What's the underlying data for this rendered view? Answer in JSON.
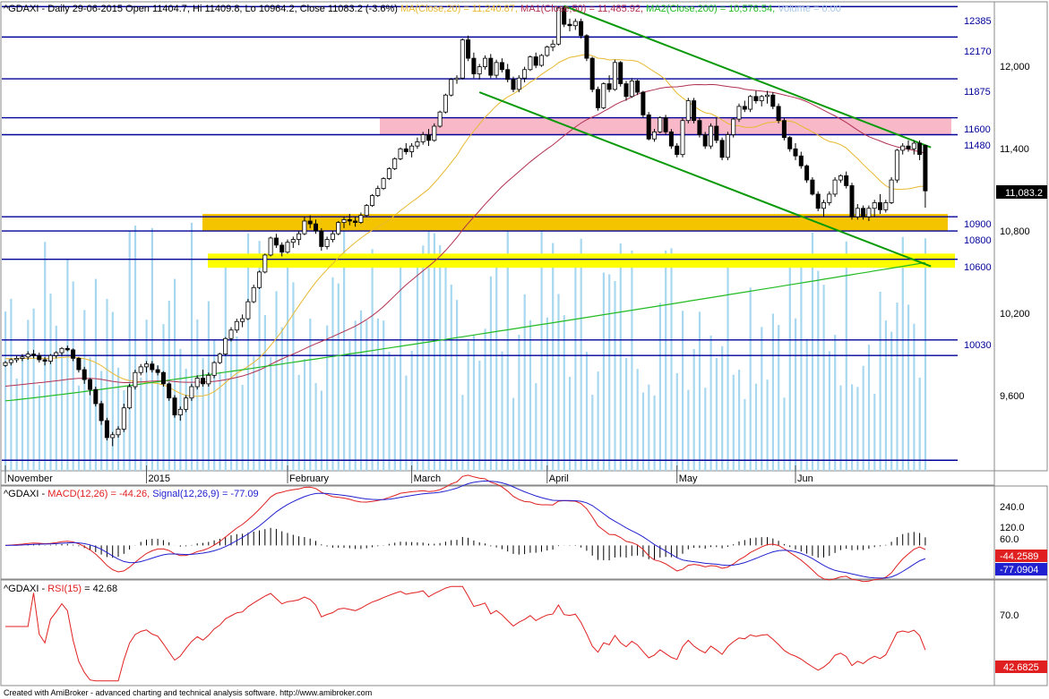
{
  "colors": {
    "up_candle": "#ffffff",
    "down_candle": "#000000",
    "level_line": "#000099",
    "ma20": "#e8b830",
    "ma50": "#b03050",
    "ma200": "#22bb22",
    "channel": "#0a9a0a",
    "volume": "#a8d8f0",
    "pink_zone": "#f8b8c8",
    "orange_zone": "#f5c400",
    "yellow_zone": "#ffff00",
    "macd_line": "#e02020",
    "signal_line": "#2020d0",
    "rsi_line": "#e02020"
  },
  "header": {
    "symbol": "^GDAXI",
    "info": "- Daily 29-06-2015 Open 11404.7, Hi 11409.8, Lo 10964.2, Close 11083.2 (-3.6%)",
    "ma20": "MA(Close,20) = 11,240.87,",
    "ma50": "MA1(Close,50) = 11,485.92,",
    "ma200": "MA2(Close,200) = 10,576.54,",
    "volume": "Volume = 0.00"
  },
  "price_axis_ticks": [
    "12,000",
    "11,400",
    "10,800",
    "10,200",
    "9,600"
  ],
  "last_price_label": "11,083.2",
  "level_labels": [
    "12385",
    "12170",
    "11875",
    "11600",
    "11480",
    "10900",
    "10800",
    "10600",
    "10030"
  ],
  "months": [
    "November",
    "2015",
    "February",
    "March",
    "April",
    "May",
    "Jun"
  ],
  "macd_panel": {
    "symbol": "^GDAXI",
    "macd_label": "MACD(12,26) = -44.26,",
    "signal_label": "Signal(12,26,9) = -77.09",
    "ticks": [
      "240.0",
      "120.0",
      "60.0"
    ],
    "macd_value": "-44.2589",
    "signal_value": "-77.0904"
  },
  "rsi_panel": {
    "label_prefix": "^GDAXI -",
    "label_name": "RSI(15)",
    "label_value": "= 42.68",
    "tick": "70.0",
    "value": "42.6825"
  },
  "footer": "Created with AmiBroker - advanced charting and technical analysis software. http://www.amibroker.com",
  "chart_data": {
    "type": "candlestick",
    "symbol": "^GDAXI",
    "period": "Daily",
    "last_bar": {
      "date": "29-06-2015",
      "open": 11404.7,
      "high": 11409.8,
      "low": 10964.2,
      "close": 11083.2,
      "change_pct": -3.6
    },
    "ylim": [
      9150,
      12400
    ],
    "horizontal_levels": [
      12385,
      12170,
      11875,
      11600,
      11480,
      10900,
      10800,
      10600,
      10030,
      9920,
      9180
    ],
    "zones": [
      {
        "name": "pink",
        "low": 11480,
        "high": 11600,
        "color": "#f8b8c8"
      },
      {
        "name": "orange",
        "low": 10800,
        "high": 10920,
        "color": "#f5c400"
      },
      {
        "name": "yellow",
        "low": 10540,
        "high": 10640,
        "color": "#ffff00"
      }
    ],
    "trend_channel": [
      {
        "from": {
          "bar": 99,
          "value": 12390
        },
        "to": {
          "bar": 164,
          "value": 11390
        }
      },
      {
        "from": {
          "bar": 84,
          "value": 11780
        },
        "to": {
          "bar": 164,
          "value": 10550
        }
      }
    ],
    "ohlc": [
      [
        9850,
        9880,
        9840,
        9870
      ],
      [
        9870,
        9900,
        9850,
        9890
      ],
      [
        9890,
        9920,
        9870,
        9900
      ],
      [
        9900,
        9930,
        9880,
        9910
      ],
      [
        9910,
        9950,
        9890,
        9930
      ],
      [
        9930,
        9960,
        9900,
        9920
      ],
      [
        9920,
        9940,
        9870,
        9890
      ],
      [
        9890,
        9910,
        9850,
        9880
      ],
      [
        9880,
        9930,
        9860,
        9920
      ],
      [
        9920,
        9950,
        9900,
        9940
      ],
      [
        9940,
        9980,
        9920,
        9970
      ],
      [
        9970,
        9990,
        9950,
        9960
      ],
      [
        9960,
        9970,
        9880,
        9900
      ],
      [
        9900,
        9910,
        9800,
        9820
      ],
      [
        9820,
        9840,
        9720,
        9750
      ],
      [
        9750,
        9760,
        9640,
        9680
      ],
      [
        9680,
        9700,
        9560,
        9580
      ],
      [
        9580,
        9600,
        9430,
        9460
      ],
      [
        9460,
        9480,
        9320,
        9340
      ],
      [
        9340,
        9380,
        9280,
        9360
      ],
      [
        9360,
        9420,
        9340,
        9400
      ],
      [
        9400,
        9580,
        9380,
        9550
      ],
      [
        9550,
        9720,
        9540,
        9700
      ],
      [
        9700,
        9820,
        9680,
        9800
      ],
      [
        9800,
        9860,
        9780,
        9840
      ],
      [
        9840,
        9880,
        9800,
        9860
      ],
      [
        9860,
        9880,
        9800,
        9820
      ],
      [
        9820,
        9850,
        9780,
        9800
      ],
      [
        9800,
        9810,
        9700,
        9720
      ],
      [
        9720,
        9730,
        9600,
        9620
      ],
      [
        9620,
        9640,
        9480,
        9500
      ],
      [
        9500,
        9560,
        9460,
        9540
      ],
      [
        9540,
        9640,
        9520,
        9620
      ],
      [
        9620,
        9720,
        9600,
        9700
      ],
      [
        9700,
        9780,
        9680,
        9760
      ],
      [
        9760,
        9820,
        9700,
        9720
      ],
      [
        9720,
        9800,
        9700,
        9780
      ],
      [
        9780,
        9880,
        9760,
        9870
      ],
      [
        9870,
        9940,
        9860,
        9930
      ],
      [
        9930,
        10050,
        9920,
        10040
      ],
      [
        10040,
        10120,
        10020,
        10100
      ],
      [
        10100,
        10180,
        10080,
        10160
      ],
      [
        10160,
        10210,
        10120,
        10180
      ],
      [
        10180,
        10320,
        10170,
        10300
      ],
      [
        10300,
        10420,
        10290,
        10400
      ],
      [
        10400,
        10520,
        10390,
        10510
      ],
      [
        10510,
        10640,
        10500,
        10630
      ],
      [
        10630,
        10760,
        10620,
        10750
      ],
      [
        10750,
        10780,
        10680,
        10700
      ],
      [
        10700,
        10720,
        10620,
        10650
      ],
      [
        10650,
        10740,
        10640,
        10720
      ],
      [
        10720,
        10760,
        10680,
        10740
      ],
      [
        10740,
        10800,
        10700,
        10780
      ],
      [
        10780,
        10900,
        10770,
        10870
      ],
      [
        10870,
        10910,
        10820,
        10850
      ],
      [
        10850,
        10880,
        10780,
        10800
      ],
      [
        10800,
        10820,
        10660,
        10690
      ],
      [
        10690,
        10760,
        10670,
        10740
      ],
      [
        10740,
        10800,
        10720,
        10780
      ],
      [
        10780,
        10870,
        10770,
        10860
      ],
      [
        10860,
        10900,
        10820,
        10880
      ],
      [
        10880,
        10920,
        10840,
        10870
      ],
      [
        10870,
        10900,
        10830,
        10860
      ],
      [
        10860,
        10930,
        10850,
        10910
      ],
      [
        10910,
        10990,
        10900,
        10980
      ],
      [
        10980,
        11060,
        10970,
        11050
      ],
      [
        11050,
        11120,
        11040,
        11100
      ],
      [
        11100,
        11180,
        11090,
        11170
      ],
      [
        11170,
        11250,
        11160,
        11240
      ],
      [
        11240,
        11320,
        11230,
        11310
      ],
      [
        11310,
        11390,
        11300,
        11380
      ],
      [
        11380,
        11420,
        11340,
        11360
      ],
      [
        11360,
        11420,
        11320,
        11400
      ],
      [
        11400,
        11460,
        11380,
        11430
      ],
      [
        11430,
        11500,
        11410,
        11480
      ],
      [
        11480,
        11520,
        11400,
        11440
      ],
      [
        11440,
        11560,
        11430,
        11540
      ],
      [
        11540,
        11650,
        11530,
        11640
      ],
      [
        11640,
        11770,
        11630,
        11760
      ],
      [
        11760,
        11880,
        11750,
        11870
      ],
      [
        11870,
        11900,
        11840,
        11880
      ],
      [
        11880,
        12160,
        11870,
        12150
      ],
      [
        12150,
        12180,
        12000,
        12020
      ],
      [
        12020,
        12060,
        11880,
        11910
      ],
      [
        11910,
        11980,
        11870,
        11960
      ],
      [
        11960,
        12040,
        11940,
        12020
      ],
      [
        12020,
        12050,
        11880,
        11900
      ],
      [
        11900,
        12010,
        11880,
        11990
      ],
      [
        11990,
        12020,
        11920,
        11940
      ],
      [
        11940,
        11980,
        11850,
        11870
      ],
      [
        11870,
        11890,
        11780,
        11800
      ],
      [
        11800,
        11900,
        11780,
        11880
      ],
      [
        11880,
        11960,
        11850,
        11940
      ],
      [
        11940,
        12040,
        11930,
        12030
      ],
      [
        12030,
        12060,
        11950,
        11970
      ],
      [
        11970,
        12050,
        11960,
        12040
      ],
      [
        12040,
        12110,
        12030,
        12100
      ],
      [
        12100,
        12150,
        12070,
        12120
      ],
      [
        12120,
        12380,
        12110,
        12375
      ],
      [
        12375,
        12390,
        12240,
        12260
      ],
      [
        12260,
        12300,
        12210,
        12250
      ],
      [
        12250,
        12300,
        12220,
        12280
      ],
      [
        12280,
        12300,
        12160,
        12180
      ],
      [
        12180,
        12190,
        12000,
        12020
      ],
      [
        12020,
        12030,
        11780,
        11800
      ],
      [
        11800,
        11820,
        11650,
        11670
      ],
      [
        11670,
        11850,
        11660,
        11840
      ],
      [
        11840,
        11900,
        11780,
        11800
      ],
      [
        11800,
        12010,
        11790,
        11990
      ],
      [
        11990,
        12000,
        11820,
        11840
      ],
      [
        11840,
        11860,
        11720,
        11750
      ],
      [
        11750,
        11880,
        11740,
        11860
      ],
      [
        11860,
        11870,
        11760,
        11780
      ],
      [
        11780,
        11790,
        11600,
        11620
      ],
      [
        11620,
        11640,
        11440,
        11450
      ],
      [
        11450,
        11520,
        11430,
        11500
      ],
      [
        11500,
        11610,
        11490,
        11600
      ],
      [
        11600,
        11620,
        11480,
        11500
      ],
      [
        11500,
        11520,
        11380,
        11400
      ],
      [
        11400,
        11420,
        11320,
        11340
      ],
      [
        11340,
        11600,
        11320,
        11580
      ],
      [
        11580,
        11740,
        11560,
        11720
      ],
      [
        11720,
        11740,
        11560,
        11580
      ],
      [
        11580,
        11600,
        11460,
        11480
      ],
      [
        11480,
        11500,
        11380,
        11400
      ],
      [
        11400,
        11560,
        11380,
        11540
      ],
      [
        11540,
        11600,
        11420,
        11440
      ],
      [
        11440,
        11460,
        11300,
        11320
      ],
      [
        11320,
        11500,
        11300,
        11480
      ],
      [
        11480,
        11600,
        11460,
        11590
      ],
      [
        11590,
        11700,
        11570,
        11680
      ],
      [
        11680,
        11720,
        11640,
        11660
      ],
      [
        11660,
        11760,
        11640,
        11750
      ],
      [
        11750,
        11790,
        11700,
        11720
      ],
      [
        11720,
        11760,
        11680,
        11750
      ],
      [
        11750,
        11790,
        11700,
        11760
      ],
      [
        11760,
        11780,
        11660,
        11680
      ],
      [
        11680,
        11700,
        11560,
        11580
      ],
      [
        11580,
        11600,
        11440,
        11460
      ],
      [
        11460,
        11470,
        11360,
        11380
      ],
      [
        11380,
        11420,
        11300,
        11330
      ],
      [
        11330,
        11360,
        11240,
        11260
      ],
      [
        11260,
        11270,
        11140,
        11160
      ],
      [
        11160,
        11180,
        11050,
        11060
      ],
      [
        11060,
        11080,
        10940,
        10960
      ],
      [
        10960,
        11020,
        10900,
        11000
      ],
      [
        11000,
        11080,
        10980,
        11060
      ],
      [
        11060,
        11180,
        11040,
        11160
      ],
      [
        11160,
        11200,
        11140,
        11190
      ],
      [
        11190,
        11220,
        11100,
        11120
      ],
      [
        11120,
        11140,
        10880,
        10900
      ],
      [
        10900,
        10990,
        10880,
        10960
      ],
      [
        10960,
        10980,
        10880,
        10900
      ],
      [
        10900,
        10980,
        10870,
        10960
      ],
      [
        10960,
        11020,
        10900,
        11000
      ],
      [
        11000,
        11060,
        10920,
        10950
      ],
      [
        10950,
        11020,
        10930,
        11000
      ],
      [
        11000,
        11180,
        10990,
        11160
      ],
      [
        11160,
        11380,
        11140,
        11370
      ],
      [
        11370,
        11420,
        11340,
        11400
      ],
      [
        11400,
        11440,
        11360,
        11380
      ],
      [
        11380,
        11440,
        11340,
        11420
      ],
      [
        11420,
        11440,
        11300,
        11340
      ],
      [
        11404.7,
        11409.8,
        10964.2,
        11083.2
      ]
    ],
    "volume_bars": "present, unscaled (Volume = 0.00 in header)",
    "ma_values_last": {
      "ma20": 11240.87,
      "ma50": 11485.92,
      "ma200": 10576.54
    },
    "months": [
      "November",
      "2015",
      "February",
      "March",
      "April",
      "May",
      "Jun"
    ],
    "macd": {
      "macd": -44.26,
      "signal": -77.09,
      "ticks": [
        240.0,
        120.0,
        60.0
      ]
    },
    "rsi": {
      "period": 15,
      "value": 42.68,
      "tick": 70.0
    }
  }
}
